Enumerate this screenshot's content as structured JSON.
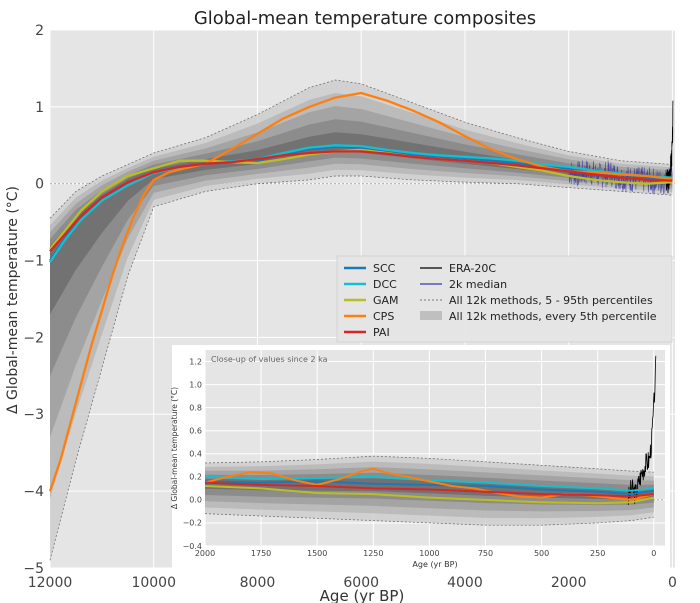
{
  "chart_data": [
    {
      "type": "line",
      "title": "Global-mean temperature composites",
      "xlabel": "Age (yr BP)",
      "ylabel": "Δ Global-mean temperature (°C)",
      "xlim": [
        12000,
        -50
      ],
      "ylim": [
        -5,
        2
      ],
      "xticks": [
        12000,
        10000,
        8000,
        6000,
        4000,
        2000,
        0
      ],
      "xtick_labels": [
        "12000",
        "10000",
        "8000",
        "6000",
        "4000",
        "2000",
        "0"
      ],
      "yticks": [
        -5,
        -4,
        -3,
        -2,
        -1,
        0,
        1,
        2
      ],
      "ytick_labels": [
        "−5",
        "−4",
        "−3",
        "−2",
        "−1",
        "0",
        "1",
        "2"
      ],
      "grid": true,
      "legend_position": "center-right",
      "legend": [
        {
          "label": "SCC",
          "color": "#1f77b4",
          "style": "line"
        },
        {
          "label": "DCC",
          "color": "#17becf",
          "style": "line"
        },
        {
          "label": "GAM",
          "color": "#bcbd22",
          "style": "line"
        },
        {
          "label": "CPS",
          "color": "#ff7f0e",
          "style": "line"
        },
        {
          "label": "PAI",
          "color": "#d62728",
          "style": "line"
        },
        {
          "label": "ERA-20C",
          "color": "#000000",
          "style": "line"
        },
        {
          "label": "2k median",
          "color": "#3a3aa0",
          "style": "line"
        },
        {
          "label": "All 12k methods, 5 - 95th percentiles",
          "color": "#777777",
          "style": "dashed"
        },
        {
          "label": "All 12k methods, every 5th percentile",
          "color": "#bfbfbf",
          "style": "patch"
        }
      ],
      "series": [
        {
          "name": "SCC",
          "color": "#1f77b4",
          "x": [
            12000,
            11700,
            11400,
            11000,
            10500,
            10000,
            9500,
            9000,
            8500,
            8000,
            7500,
            7000,
            6500,
            6000,
            5500,
            5000,
            4500,
            4000,
            3500,
            3000,
            2500,
            2000,
            1500,
            1000,
            500,
            0
          ],
          "y": [
            -1.0,
            -0.7,
            -0.45,
            -0.2,
            0.0,
            0.15,
            0.22,
            0.26,
            0.28,
            0.3,
            0.38,
            0.45,
            0.48,
            0.47,
            0.42,
            0.38,
            0.35,
            0.33,
            0.3,
            0.27,
            0.22,
            0.2,
            0.15,
            0.12,
            0.08,
            0.06
          ]
        },
        {
          "name": "DCC",
          "color": "#17becf",
          "x": [
            12000,
            11700,
            11400,
            11000,
            10500,
            10000,
            9500,
            9000,
            8500,
            8000,
            7500,
            7000,
            6500,
            6000,
            5500,
            5000,
            4500,
            4000,
            3500,
            3000,
            2500,
            2000,
            1500,
            1000,
            500,
            0
          ],
          "y": [
            -1.02,
            -0.72,
            -0.47,
            -0.22,
            -0.02,
            0.14,
            0.21,
            0.26,
            0.29,
            0.32,
            0.4,
            0.47,
            0.5,
            0.49,
            0.44,
            0.4,
            0.37,
            0.35,
            0.33,
            0.3,
            0.25,
            0.22,
            0.17,
            0.13,
            0.1,
            0.08
          ]
        },
        {
          "name": "GAM",
          "color": "#bcbd22",
          "x": [
            12000,
            11700,
            11400,
            11000,
            10500,
            10000,
            9500,
            9000,
            8500,
            8000,
            7500,
            7000,
            6500,
            6000,
            5500,
            5000,
            4500,
            4000,
            3500,
            3000,
            2500,
            2000,
            1500,
            1000,
            500,
            0
          ],
          "y": [
            -0.85,
            -0.6,
            -0.35,
            -0.1,
            0.1,
            0.2,
            0.3,
            0.3,
            0.28,
            0.27,
            0.32,
            0.38,
            0.42,
            0.44,
            0.4,
            0.35,
            0.32,
            0.3,
            0.27,
            0.22,
            0.17,
            0.1,
            0.05,
            0.02,
            0.0,
            0.02
          ]
        },
        {
          "name": "CPS",
          "color": "#ff7f0e",
          "x": [
            12000,
            11800,
            11600,
            11400,
            11200,
            11000,
            10800,
            10600,
            10400,
            10200,
            10000,
            9700,
            9400,
            9000,
            8500,
            8000,
            7500,
            7000,
            6500,
            6000,
            5500,
            5000,
            4500,
            4000,
            3500,
            3000,
            2500,
            2000,
            1500,
            1000,
            500,
            0
          ],
          "y": [
            -4.0,
            -3.6,
            -3.1,
            -2.6,
            -2.1,
            -1.65,
            -1.2,
            -0.8,
            -0.45,
            -0.15,
            0.05,
            0.15,
            0.2,
            0.26,
            0.45,
            0.65,
            0.85,
            1.0,
            1.12,
            1.18,
            1.08,
            0.95,
            0.8,
            0.62,
            0.45,
            0.32,
            0.22,
            0.16,
            0.15,
            0.12,
            0.1,
            0.06
          ]
        },
        {
          "name": "PAI",
          "color": "#d62728",
          "x": [
            12000,
            11700,
            11400,
            11000,
            10500,
            10000,
            9500,
            9000,
            8500,
            8000,
            7500,
            7000,
            6500,
            6000,
            5500,
            5000,
            4500,
            4000,
            3500,
            3000,
            2500,
            2000,
            1500,
            1000,
            500,
            0
          ],
          "y": [
            -0.88,
            -0.65,
            -0.42,
            -0.18,
            0.02,
            0.15,
            0.22,
            0.26,
            0.28,
            0.32,
            0.37,
            0.4,
            0.42,
            0.42,
            0.39,
            0.35,
            0.32,
            0.3,
            0.27,
            0.24,
            0.2,
            0.16,
            0.12,
            0.08,
            0.05,
            0.04
          ]
        },
        {
          "name": "2k median",
          "color": "#3a3aa0",
          "x": [
            2000,
            1800,
            1600,
            1400,
            1200,
            1000,
            800,
            600,
            400,
            200,
            100,
            0
          ],
          "y": [
            0.15,
            0.12,
            0.16,
            0.1,
            0.14,
            0.08,
            0.06,
            0.05,
            0.04,
            0.02,
            0.05,
            0.15
          ]
        },
        {
          "name": "ERA-20C",
          "color": "#000000",
          "x": [
            115,
            100,
            80,
            60,
            40,
            20,
            5,
            -5,
            -10
          ],
          "y": [
            0.0,
            0.05,
            0.02,
            0.1,
            0.2,
            0.3,
            0.45,
            0.7,
            1.0
          ]
        }
      ],
      "bands": {
        "x": [
          12000,
          11500,
          11000,
          10500,
          10000,
          9000,
          8000,
          7000,
          6500,
          6000,
          5000,
          4000,
          3000,
          2000,
          1000,
          0
        ],
        "median": [
          -0.9,
          -0.5,
          -0.2,
          0.02,
          0.15,
          0.25,
          0.32,
          0.45,
          0.5,
          0.48,
          0.4,
          0.32,
          0.24,
          0.16,
          0.1,
          0.06
        ],
        "p5": [
          -4.9,
          -3.6,
          -2.4,
          -1.2,
          -0.3,
          -0.1,
          0.0,
          0.05,
          0.1,
          0.1,
          0.05,
          0.02,
          0.0,
          -0.05,
          -0.1,
          -0.15
        ],
        "p95": [
          -0.45,
          -0.1,
          0.1,
          0.25,
          0.4,
          0.6,
          0.9,
          1.25,
          1.35,
          1.3,
          1.05,
          0.8,
          0.6,
          0.42,
          0.3,
          0.25
        ]
      }
    },
    {
      "type": "line",
      "title": "Close-up of values since 2 ka",
      "xlabel": "Age (yr BP)",
      "ylabel": "Δ Global-mean temperature (°C)",
      "xlim": [
        2000,
        -50
      ],
      "ylim": [
        -0.4,
        1.3
      ],
      "xticks": [
        2000,
        1750,
        1500,
        1250,
        1000,
        750,
        500,
        250,
        0
      ],
      "xtick_labels": [
        "2000",
        "1750",
        "1500",
        "1250",
        "1000",
        "750",
        "500",
        "250",
        "0"
      ],
      "yticks": [
        -0.4,
        -0.2,
        0.0,
        0.2,
        0.4,
        0.6,
        0.8,
        1.0,
        1.2
      ],
      "ytick_labels": [
        "−0.4",
        "−0.2",
        "0.0",
        "0.2",
        "0.4",
        "0.6",
        "0.8",
        "1.0",
        "1.2"
      ],
      "grid": true,
      "series": [
        {
          "name": "SCC",
          "color": "#1f77b4",
          "x": [
            2000,
            1750,
            1500,
            1250,
            1000,
            750,
            500,
            250,
            100,
            0
          ],
          "y": [
            0.16,
            0.15,
            0.16,
            0.14,
            0.13,
            0.12,
            0.09,
            0.07,
            0.05,
            0.08
          ]
        },
        {
          "name": "DCC",
          "color": "#17becf",
          "x": [
            2000,
            1750,
            1500,
            1250,
            1000,
            750,
            500,
            250,
            100,
            0
          ],
          "y": [
            0.2,
            0.18,
            0.19,
            0.2,
            0.17,
            0.15,
            0.12,
            0.1,
            0.08,
            0.1
          ]
        },
        {
          "name": "GAM",
          "color": "#bcbd22",
          "x": [
            2000,
            1750,
            1500,
            1250,
            1000,
            750,
            500,
            250,
            100,
            0
          ],
          "y": [
            0.12,
            0.1,
            0.06,
            0.05,
            0.02,
            0.0,
            -0.02,
            -0.03,
            -0.02,
            0.02
          ]
        },
        {
          "name": "CPS",
          "color": "#ff7f0e",
          "x": [
            2000,
            1900,
            1800,
            1700,
            1600,
            1500,
            1400,
            1300,
            1250,
            1200,
            1100,
            1000,
            900,
            800,
            700,
            600,
            500,
            400,
            300,
            200,
            100,
            0
          ],
          "y": [
            0.15,
            0.2,
            0.24,
            0.23,
            0.17,
            0.13,
            0.18,
            0.25,
            0.27,
            0.24,
            0.2,
            0.16,
            0.12,
            0.1,
            0.06,
            0.03,
            0.02,
            0.05,
            0.04,
            0.02,
            0.0,
            0.05
          ]
        },
        {
          "name": "PAI",
          "color": "#d62728",
          "x": [
            2000,
            1750,
            1500,
            1250,
            1000,
            750,
            500,
            250,
            100,
            0
          ],
          "y": [
            0.15,
            0.13,
            0.12,
            0.1,
            0.09,
            0.07,
            0.05,
            0.04,
            0.03,
            0.05
          ]
        },
        {
          "name": "ERA-20C",
          "color": "#000000",
          "x": [
            115,
            100,
            80,
            60,
            40,
            20,
            10,
            0,
            -10
          ],
          "y": [
            0.0,
            0.1,
            0.05,
            0.2,
            0.3,
            0.35,
            0.5,
            0.8,
            1.2
          ]
        }
      ],
      "bands": {
        "x": [
          2000,
          1750,
          1500,
          1250,
          1000,
          750,
          500,
          250,
          100,
          0
        ],
        "median": [
          0.15,
          0.14,
          0.14,
          0.14,
          0.12,
          0.1,
          0.08,
          0.06,
          0.05,
          0.06
        ],
        "p5": [
          -0.12,
          -0.14,
          -0.16,
          -0.18,
          -0.2,
          -0.22,
          -0.22,
          -0.2,
          -0.18,
          -0.15
        ],
        "p95": [
          0.32,
          0.33,
          0.35,
          0.38,
          0.36,
          0.33,
          0.3,
          0.27,
          0.25,
          0.24
        ]
      }
    }
  ]
}
